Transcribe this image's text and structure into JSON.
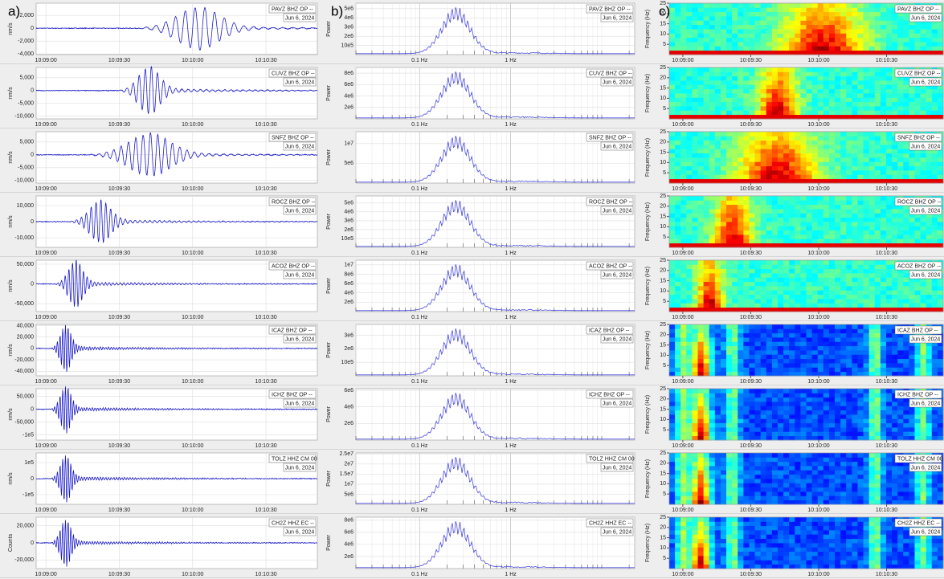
{
  "panel_labels": [
    "a)",
    "b)",
    "c)"
  ],
  "waveform_axis": {
    "xlim": [
      -4,
      111
    ],
    "xticks": [
      {
        "value": 0,
        "label": "10:09:00"
      },
      {
        "value": 30,
        "label": "10:09:30"
      },
      {
        "value": 60,
        "label": "10:10:00"
      },
      {
        "value": 90,
        "label": "10:10:30"
      }
    ]
  },
  "spectrum_axis": {
    "xlim": [
      0.02,
      23
    ],
    "log": true,
    "xticks": [
      {
        "value": 0.1,
        "label": "0.1 Hz"
      },
      {
        "value": 1,
        "label": "1 Hz"
      }
    ]
  },
  "spectrogram_axis": {
    "ylabel": "Frequency (Hz)",
    "xlim": [
      -6,
      115
    ],
    "ylim": [
      0,
      25
    ],
    "yticks": [
      5,
      10,
      15,
      20,
      25
    ],
    "xticks": [
      {
        "value": 0,
        "label": "10:09:00"
      },
      {
        "value": 30,
        "label": "10:09:30"
      },
      {
        "value": 60,
        "label": "10:10:00"
      },
      {
        "value": 90,
        "label": "10:10:30"
      }
    ]
  },
  "rows": [
    {
      "station": "PAVZ BHZ OP --",
      "date": "Jun 6, 2024",
      "waveform": {
        "ylabel": "nm/s",
        "ylim": [
          -4100,
          3900
        ],
        "yticks": [
          {
            "value": 2000,
            "label": "2,000"
          },
          0,
          {
            "value": -2000,
            "label": "-2,000"
          },
          {
            "value": -4000,
            "label": "-4,000"
          }
        ]
      },
      "spectrum": {
        "ylabel": "Power",
        "ylim": [
          0,
          5600000
        ],
        "yticks": [
          {
            "value": 5000000,
            "label": "5e6"
          },
          {
            "value": 4000000,
            "label": "4e6"
          },
          {
            "value": 3000000,
            "label": "3e6"
          },
          {
            "value": 2000000,
            "label": "2e6"
          },
          {
            "value": 1000000,
            "label": "10e5"
          }
        ]
      }
    },
    {
      "station": "CUVZ BHZ OP --",
      "date": "Jun 6, 2024",
      "waveform": {
        "ylabel": "nm/s",
        "ylim": [
          -11000,
          9000
        ],
        "yticks": [
          {
            "value": 5000,
            "label": "5,000"
          },
          0,
          {
            "value": -5000,
            "label": "-5,000"
          },
          {
            "value": -10000,
            "label": "-10,000"
          }
        ]
      },
      "spectrum": {
        "ylabel": "Power",
        "ylim": [
          0,
          9000000
        ],
        "yticks": [
          {
            "value": 8000000,
            "label": "8e6"
          },
          {
            "value": 6000000,
            "label": "6e6"
          },
          {
            "value": 4000000,
            "label": "4e6"
          },
          {
            "value": 2000000,
            "label": "2e6"
          }
        ]
      }
    },
    {
      "station": "SNFZ BHZ OP --",
      "date": "Jun 6, 2024",
      "waveform": {
        "ylabel": "nm/s",
        "ylim": [
          -11000,
          9000
        ],
        "yticks": [
          {
            "value": 5000,
            "label": "5,000"
          },
          0,
          {
            "value": -5000,
            "label": "-5,000"
          },
          {
            "value": -10000,
            "label": "-10,000"
          }
        ]
      },
      "spectrum": {
        "ylabel": "Power",
        "ylim": [
          0,
          13000000
        ],
        "yticks": [
          {
            "value": 10000000,
            "label": "1e7"
          },
          {
            "value": 5000000,
            "label": "5e6"
          }
        ]
      }
    },
    {
      "station": "ROCZ BHZ OP --",
      "date": "Jun 6, 2024",
      "waveform": {
        "ylabel": "nm/s",
        "ylim": [
          -16000,
          16000
        ],
        "yticks": [
          {
            "value": 10000,
            "label": "10,000"
          },
          0,
          {
            "value": -10000,
            "label": "-10,000"
          }
        ]
      },
      "spectrum": {
        "ylabel": "Power",
        "ylim": [
          0,
          5800000
        ],
        "yticks": [
          {
            "value": 5000000,
            "label": "5e6"
          },
          {
            "value": 4000000,
            "label": "4e6"
          },
          {
            "value": 3000000,
            "label": "3e6"
          },
          {
            "value": 2000000,
            "label": "2e6"
          },
          {
            "value": 1000000,
            "label": "10e5"
          }
        ]
      }
    },
    {
      "station": "ACOZ BHZ OP --",
      "date": "Jun 6, 2024",
      "waveform": {
        "ylabel": "nm/s",
        "ylim": [
          -70000,
          60000
        ],
        "yticks": [
          {
            "value": 50000,
            "label": "50,000"
          },
          0,
          {
            "value": -50000,
            "label": "-50,000"
          }
        ]
      },
      "spectrum": {
        "ylabel": "Power",
        "ylim": [
          0,
          11000000
        ],
        "yticks": [
          {
            "value": 10000000,
            "label": "1e7"
          },
          {
            "value": 8000000,
            "label": "8e6"
          },
          {
            "value": 6000000,
            "label": "6e6"
          },
          {
            "value": 4000000,
            "label": "4e6"
          },
          {
            "value": 2000000,
            "label": "2e6"
          }
        ]
      }
    },
    {
      "station": "ICAZ BHZ OP --",
      "date": "Jun 6, 2024",
      "waveform": {
        "ylabel": "nm/s",
        "ylim": [
          -48000,
          42000
        ],
        "yticks": [
          {
            "value": 40000,
            "label": "40,000"
          },
          {
            "value": 20000,
            "label": "20,000"
          },
          0,
          {
            "value": -20000,
            "label": "-20,000"
          },
          {
            "value": -40000,
            "label": "-40,000"
          }
        ]
      },
      "spectrum": {
        "ylabel": "Power",
        "ylim": [
          0,
          3800000
        ],
        "yticks": [
          {
            "value": 3000000,
            "label": "3e6"
          },
          {
            "value": 2000000,
            "label": "2e6"
          },
          {
            "value": 1000000,
            "label": "10e5"
          }
        ]
      }
    },
    {
      "station": "ICHZ BHZ OP --",
      "date": "Jun 6, 2024",
      "waveform": {
        "ylabel": "nm/s",
        "ylim": [
          -120000,
          80000
        ],
        "yticks": [
          {
            "value": 50000,
            "label": "50,000"
          },
          0,
          {
            "value": -50000,
            "label": "-50,000"
          },
          {
            "value": -100000,
            "label": "-1e5"
          }
        ]
      },
      "spectrum": {
        "ylabel": "Power",
        "ylim": [
          0,
          6200000
        ],
        "yticks": [
          {
            "value": 6000000,
            "label": "6e6"
          },
          {
            "value": 4000000,
            "label": "4e6"
          },
          {
            "value": 2000000,
            "label": "2e6"
          }
        ]
      }
    },
    {
      "station": "TOLZ HHZ CM 00",
      "date": "Jun 6, 2024",
      "waveform": {
        "ylabel": "nm/s",
        "ylim": [
          -160000,
          160000
        ],
        "yticks": [
          {
            "value": 100000,
            "label": "1e5"
          },
          0,
          {
            "value": -100000,
            "label": "-1e5"
          }
        ]
      },
      "spectrum": {
        "ylabel": "Power",
        "ylim": [
          0,
          25500000
        ],
        "yticks": [
          {
            "value": 25000000,
            "label": "2.5e7"
          },
          {
            "value": 20000000,
            "label": "2e7"
          },
          {
            "value": 15000000,
            "label": "1.5e7"
          },
          {
            "value": 10000000,
            "label": "1e7"
          },
          {
            "value": 5000000,
            "label": "5e6"
          }
        ]
      }
    },
    {
      "station": "CH2Z HHZ EC --",
      "date": "Jun 6, 2024",
      "waveform": {
        "ylabel": "Counts",
        "ylim": [
          -30000,
          30000
        ],
        "yticks": [
          {
            "value": 20000,
            "label": "20,000"
          },
          0,
          {
            "value": -20000,
            "label": "-20,000"
          }
        ]
      },
      "spectrum": {
        "ylabel": "Power",
        "ylim": [
          0,
          8500000
        ],
        "yticks": [
          {
            "value": 8000000,
            "label": "8e6"
          },
          {
            "value": 6000000,
            "label": "6e6"
          },
          {
            "value": 4000000,
            "label": "4e6"
          },
          {
            "value": 2000000,
            "label": "2e6"
          }
        ]
      }
    }
  ]
}
